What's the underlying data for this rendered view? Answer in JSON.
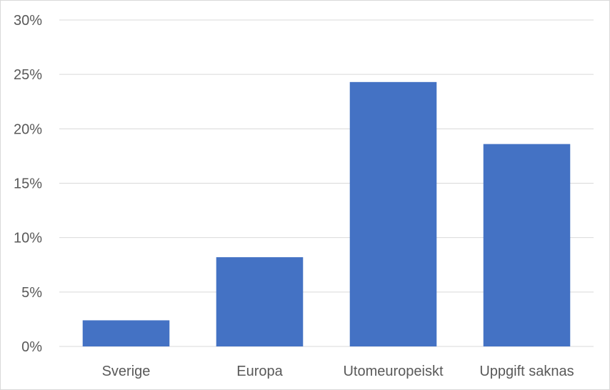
{
  "chart_data": {
    "type": "bar",
    "categories": [
      "Sverige",
      "Europa",
      "Utomeuropeiskt",
      "Uppgift saknas"
    ],
    "values": [
      2.4,
      8.2,
      24.3,
      18.6
    ],
    "ylim": [
      0,
      30
    ],
    "yticks": [
      0,
      5,
      10,
      15,
      20,
      25,
      30
    ],
    "ytick_labels": [
      "0%",
      "5%",
      "10%",
      "15%",
      "20%",
      "25%",
      "30%"
    ],
    "title": "",
    "xlabel": "",
    "ylabel": "",
    "grid": true,
    "legend": "none",
    "bar_color": "#4472C4",
    "grid_color": "#d9d9d9",
    "text_color": "#595959"
  }
}
